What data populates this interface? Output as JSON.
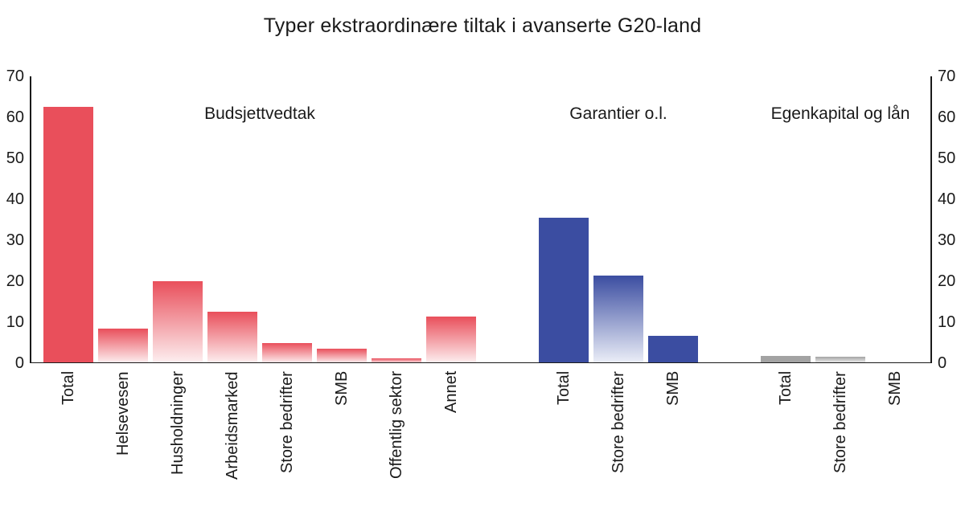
{
  "chart_data": {
    "type": "bar",
    "title": "Typer ekstraordinære tiltak i avanserte G20-land",
    "xlabel": "",
    "ylabel": "",
    "ylim": [
      0,
      70
    ],
    "yticks": [
      0,
      10,
      20,
      30,
      40,
      50,
      60,
      70
    ],
    "grid": false,
    "legend": "none",
    "y_axis_sides": [
      "left",
      "right"
    ],
    "x_tick_label_rotation_deg": 90,
    "groups": [
      {
        "label": "Budsjettvedtak",
        "color": "#e94f5b",
        "fade": "#fdf0f1",
        "bars": [
          {
            "category": "Total",
            "value": 62.5,
            "solid": true
          },
          {
            "category": "Helsevesen",
            "value": 8.5,
            "solid": false
          },
          {
            "category": "Husholdninger",
            "value": 20,
            "solid": false
          },
          {
            "category": "Arbeidsmarked",
            "value": 12.5,
            "solid": false
          },
          {
            "category": "Store bedrifter",
            "value": 5,
            "solid": false
          },
          {
            "category": "SMB",
            "value": 3.5,
            "solid": false
          },
          {
            "category": "Offentlig sektor",
            "value": 1.2,
            "solid": false
          },
          {
            "category": "Annet",
            "value": 11.3,
            "solid": false
          }
        ]
      },
      {
        "label": "Garantier o.l.",
        "color": "#3b4da1",
        "fade": "#eceff8",
        "bars": [
          {
            "category": "Total",
            "value": 35.5,
            "solid": true
          },
          {
            "category": "Store bedrifter",
            "value": 21.3,
            "solid": false
          },
          {
            "category": "SMB",
            "value": 6.7,
            "solid": true
          }
        ]
      },
      {
        "label": "Egenkapital og lån",
        "color": "#a3a3a3",
        "fade": "#f2f2f2",
        "bars": [
          {
            "category": "Total",
            "value": 1.8,
            "solid": true
          },
          {
            "category": "Store bedrifter",
            "value": 1.5,
            "solid": false
          },
          {
            "category": "SMB",
            "value": 0.1,
            "solid": false
          }
        ]
      }
    ]
  }
}
